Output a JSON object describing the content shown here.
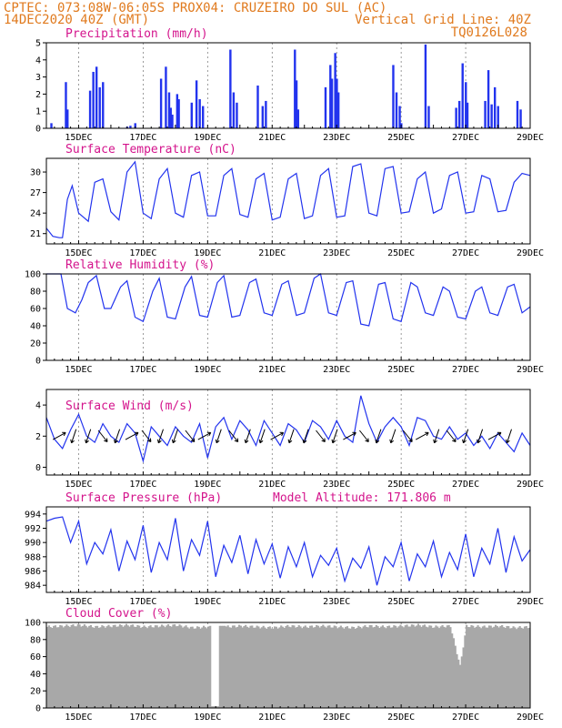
{
  "header": {
    "left_line1": "CPTEC:   073:08W-06:05S  PROX04: CRUZEIRO DO SUL (AC)",
    "left_line2": "14DEC2020 40Z (GMT)",
    "right_line2": "Vertical Grid Line: 40Z",
    "right_line3": "TQ0126L028"
  },
  "x_axis": {
    "days": [
      "15DEC",
      "17DEC",
      "19DEC",
      "21DEC",
      "23DEC",
      "25DEC",
      "27DEC",
      "29DEC"
    ],
    "start_day": 14,
    "end_day": 29
  },
  "panels": {
    "precip": {
      "title": "Precipitation (mm/h)",
      "yticks": [
        "0",
        "1",
        "2",
        "3",
        "4",
        "5"
      ]
    },
    "temp": {
      "title": "Surface Temperature (nC)",
      "yticks": [
        "21",
        "24",
        "27",
        "30"
      ]
    },
    "rh": {
      "title": "Relative Humidity (%)",
      "yticks": [
        "0",
        "20",
        "40",
        "60",
        "80",
        "100"
      ]
    },
    "wind": {
      "title": "Surface Wind (m/s)",
      "yticks": [
        "0",
        "2",
        "4"
      ]
    },
    "pressure": {
      "title": "Surface Pressure (hPa)",
      "subtitle": "Model Altitude: 171.806 m",
      "yticks": [
        "984",
        "986",
        "988",
        "990",
        "992",
        "994"
      ]
    },
    "cloud": {
      "title": "Cloud Cover (%)",
      "yticks": [
        "0",
        "20",
        "40",
        "60",
        "80",
        "100"
      ]
    }
  },
  "chart_data": [
    {
      "type": "bar",
      "title": "Precipitation (mm/h)",
      "ylim": [
        0,
        5
      ],
      "x_unit": "day of December 2020",
      "x": [
        14.15,
        14.6,
        14.65,
        15.35,
        15.45,
        15.55,
        15.65,
        15.75,
        16.5,
        16.6,
        16.75,
        17.55,
        17.7,
        17.8,
        17.85,
        17.9,
        18.05,
        18.1,
        18.5,
        18.65,
        18.75,
        18.85,
        19.7,
        19.8,
        19.9,
        20.55,
        20.7,
        20.8,
        21.7,
        21.75,
        21.8,
        22.65,
        22.8,
        22.85,
        22.95,
        23.0,
        23.05,
        24.75,
        24.85,
        24.95,
        25.0,
        25.75,
        25.85,
        26.7,
        26.8,
        26.9,
        27.0,
        27.05,
        27.6,
        27.7,
        27.8,
        27.9,
        28.0,
        28.6,
        28.7
      ],
      "values": [
        0.3,
        2.7,
        1.1,
        2.2,
        3.3,
        3.6,
        2.4,
        2.7,
        0.1,
        0.15,
        0.3,
        2.9,
        3.6,
        2.1,
        1.2,
        0.8,
        2.0,
        1.7,
        1.5,
        2.8,
        1.7,
        1.3,
        4.6,
        2.1,
        1.5,
        2.5,
        1.3,
        1.6,
        4.6,
        2.8,
        1.1,
        2.4,
        3.7,
        2.9,
        4.4,
        2.9,
        2.1,
        3.7,
        2.1,
        1.3,
        0.3,
        4.9,
        1.3,
        1.2,
        1.6,
        3.8,
        2.7,
        1.5,
        1.6,
        3.4,
        1.4,
        2.4,
        1.3,
        1.6,
        1.1
      ]
    },
    {
      "type": "line",
      "title": "Surface Temperature (nC)",
      "ylim": [
        19.5,
        32
      ],
      "x_unit": "day of December 2020",
      "x": [
        14.0,
        14.2,
        14.4,
        14.5,
        14.65,
        14.8,
        15.0,
        15.3,
        15.5,
        15.75,
        16.0,
        16.25,
        16.5,
        16.75,
        17.0,
        17.25,
        17.5,
        17.75,
        18.0,
        18.25,
        18.5,
        18.75,
        19.0,
        19.25,
        19.5,
        19.75,
        20.0,
        20.25,
        20.5,
        20.75,
        21.0,
        21.25,
        21.5,
        21.75,
        22.0,
        22.25,
        22.5,
        22.75,
        23.0,
        23.25,
        23.5,
        23.75,
        24.0,
        24.25,
        24.5,
        24.75,
        25.0,
        25.25,
        25.5,
        25.75,
        26.0,
        26.25,
        26.5,
        26.75,
        27.0,
        27.25,
        27.5,
        27.75,
        28.0,
        28.25,
        28.5,
        28.75,
        29.0
      ],
      "values": [
        21.8,
        20.6,
        20.4,
        20.4,
        26.0,
        28.0,
        24.0,
        22.8,
        28.5,
        29.0,
        24.2,
        23.0,
        30.0,
        31.5,
        24.0,
        23.2,
        29.0,
        30.5,
        24.0,
        23.4,
        29.5,
        30.0,
        23.6,
        23.6,
        29.5,
        30.5,
        23.8,
        23.4,
        29.0,
        29.8,
        23.0,
        23.4,
        29.0,
        29.8,
        23.2,
        23.6,
        29.5,
        30.5,
        23.4,
        23.6,
        30.8,
        31.2,
        24.0,
        23.6,
        30.5,
        30.8,
        24.0,
        24.2,
        29.0,
        30.0,
        24.0,
        24.6,
        29.5,
        30.0,
        24.0,
        24.2,
        29.5,
        29.0,
        24.2,
        24.4,
        28.5,
        29.8,
        29.5
      ]
    },
    {
      "type": "line",
      "title": "Relative Humidity (%)",
      "ylim": [
        0,
        100
      ],
      "x_unit": "day of December 2020",
      "x": [
        14.0,
        14.2,
        14.45,
        14.65,
        14.9,
        15.1,
        15.3,
        15.55,
        15.8,
        16.0,
        16.3,
        16.5,
        16.75,
        17.0,
        17.3,
        17.5,
        17.75,
        18.0,
        18.3,
        18.5,
        18.75,
        19.0,
        19.3,
        19.5,
        19.75,
        20.0,
        20.3,
        20.5,
        20.75,
        21.0,
        21.3,
        21.5,
        21.75,
        22.0,
        22.3,
        22.5,
        22.75,
        23.0,
        23.3,
        23.5,
        23.75,
        24.0,
        24.3,
        24.5,
        24.75,
        25.0,
        25.3,
        25.5,
        25.75,
        26.0,
        26.3,
        26.5,
        26.75,
        27.0,
        27.3,
        27.5,
        27.75,
        28.0,
        28.3,
        28.5,
        28.75,
        29.0
      ],
      "values": [
        100,
        100,
        100,
        60,
        55,
        70,
        90,
        98,
        60,
        60,
        85,
        92,
        50,
        45,
        80,
        95,
        50,
        48,
        85,
        97,
        52,
        50,
        90,
        98,
        50,
        52,
        90,
        94,
        55,
        52,
        88,
        92,
        52,
        55,
        95,
        100,
        55,
        52,
        90,
        92,
        42,
        40,
        88,
        90,
        48,
        45,
        90,
        85,
        55,
        52,
        85,
        80,
        50,
        48,
        80,
        85,
        55,
        52,
        85,
        88,
        55,
        62
      ]
    },
    {
      "type": "line",
      "title": "Surface Wind (m/s)",
      "ylim": [
        -0.5,
        5
      ],
      "x_unit": "day of December 2020",
      "x": [
        14.0,
        14.25,
        14.5,
        14.75,
        15.0,
        15.25,
        15.5,
        15.75,
        16.0,
        16.25,
        16.5,
        16.75,
        17.0,
        17.25,
        17.5,
        17.75,
        18.0,
        18.25,
        18.5,
        18.75,
        19.0,
        19.25,
        19.5,
        19.75,
        20.0,
        20.25,
        20.5,
        20.75,
        21.0,
        21.25,
        21.5,
        21.75,
        22.0,
        22.25,
        22.5,
        22.75,
        23.0,
        23.25,
        23.5,
        23.75,
        24.0,
        24.25,
        24.5,
        24.75,
        25.0,
        25.25,
        25.5,
        25.75,
        26.0,
        26.25,
        26.5,
        26.75,
        27.0,
        27.25,
        27.5,
        27.75,
        28.0,
        28.25,
        28.5,
        28.75,
        29.0
      ],
      "values": [
        3.2,
        1.8,
        1.2,
        2.4,
        3.4,
        2.0,
        1.6,
        2.8,
        2.0,
        1.6,
        2.8,
        2.2,
        0.4,
        2.6,
        2.0,
        1.4,
        2.6,
        2.0,
        1.6,
        2.8,
        0.6,
        2.6,
        3.2,
        1.8,
        3.0,
        2.4,
        1.4,
        3.0,
        2.2,
        1.4,
        2.8,
        2.4,
        1.6,
        3.0,
        2.6,
        1.8,
        3.0,
        2.0,
        1.6,
        4.6,
        2.8,
        1.6,
        2.6,
        3.2,
        2.6,
        1.4,
        3.2,
        3.0,
        2.0,
        1.8,
        2.6,
        1.8,
        2.2,
        1.4,
        2.0,
        1.2,
        2.2,
        1.6,
        1.0,
        2.2,
        1.4
      ]
    },
    {
      "type": "line",
      "title": "Surface Pressure (hPa)",
      "ylim": [
        983,
        995
      ],
      "x_unit": "day of December 2020",
      "x": [
        14.0,
        14.25,
        14.5,
        14.75,
        15.0,
        15.25,
        15.5,
        15.75,
        16.0,
        16.25,
        16.5,
        16.75,
        17.0,
        17.25,
        17.5,
        17.75,
        18.0,
        18.25,
        18.5,
        18.75,
        19.0,
        19.25,
        19.5,
        19.75,
        20.0,
        20.25,
        20.5,
        20.75,
        21.0,
        21.25,
        21.5,
        21.75,
        22.0,
        22.25,
        22.5,
        22.75,
        23.0,
        23.25,
        23.5,
        23.75,
        24.0,
        24.25,
        24.5,
        24.75,
        25.0,
        25.25,
        25.5,
        25.75,
        26.0,
        26.25,
        26.5,
        26.75,
        27.0,
        27.25,
        27.5,
        27.75,
        28.0,
        28.25,
        28.5,
        28.75,
        29.0
      ],
      "values": [
        993.0,
        993.4,
        993.6,
        990.0,
        993.0,
        987.0,
        990.0,
        988.4,
        991.8,
        986.0,
        990.2,
        987.6,
        992.4,
        985.8,
        990.0,
        987.6,
        993.4,
        986.0,
        990.4,
        988.2,
        993.0,
        985.2,
        989.6,
        987.2,
        991.0,
        985.6,
        990.4,
        987.0,
        989.8,
        985.0,
        989.4,
        986.6,
        990.0,
        985.2,
        988.2,
        986.8,
        989.2,
        984.6,
        987.8,
        986.4,
        989.4,
        984.0,
        988.0,
        986.6,
        990.0,
        984.6,
        988.4,
        986.6,
        990.2,
        985.2,
        988.6,
        986.2,
        991.2,
        985.2,
        989.2,
        987.0,
        992.0,
        985.8,
        990.8,
        987.4,
        989.0
      ]
    },
    {
      "type": "bar",
      "title": "Cloud Cover (%)",
      "ylim": [
        0,
        100
      ],
      "x_unit": "day of December 2020",
      "x": [
        14.0,
        14.5,
        15.0,
        15.5,
        16.0,
        16.5,
        17.0,
        17.5,
        18.0,
        18.5,
        19.0,
        19.2,
        19.5,
        20.0,
        20.5,
        21.0,
        21.5,
        22.0,
        22.5,
        23.0,
        23.5,
        24.0,
        24.5,
        25.0,
        25.5,
        26.0,
        26.5,
        26.8,
        27.0,
        27.5,
        28.0,
        28.5,
        29.0
      ],
      "values": [
        96,
        97,
        98,
        96,
        97,
        98,
        96,
        97,
        98,
        95,
        96,
        2,
        96,
        97,
        96,
        95,
        97,
        96,
        97,
        96,
        95,
        97,
        96,
        97,
        98,
        96,
        97,
        50,
        97,
        96,
        97,
        95,
        96
      ]
    }
  ]
}
